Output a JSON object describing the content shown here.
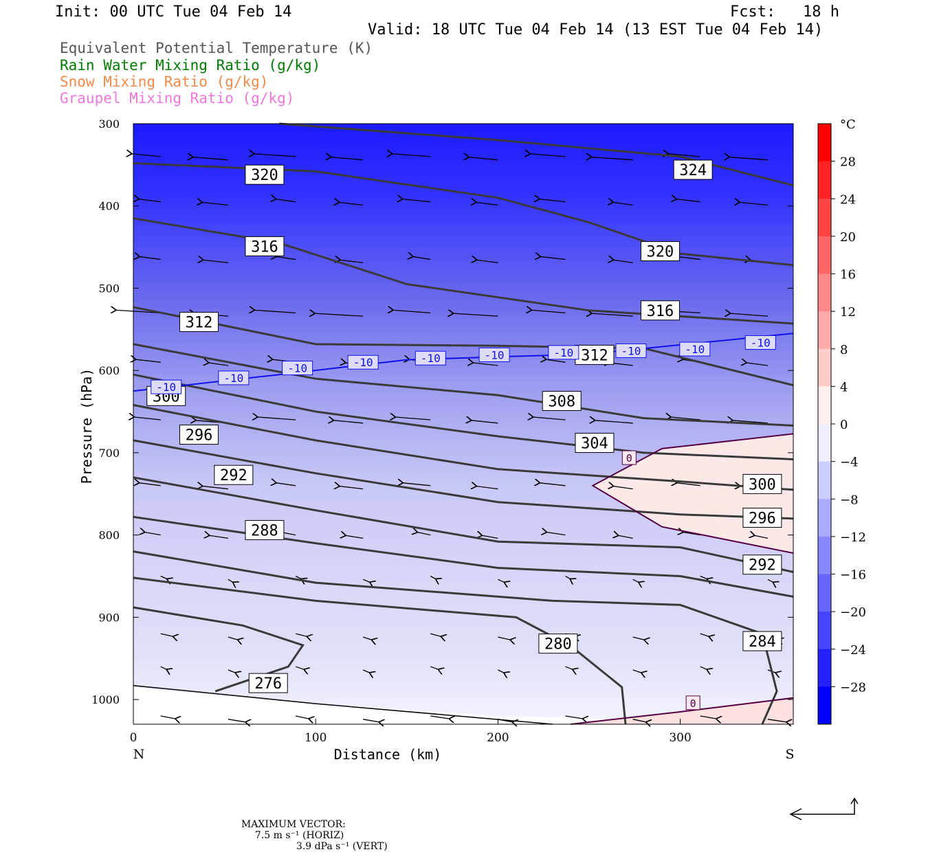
{
  "header": {
    "init": "Init: 00 UTC Tue 04 Feb 14",
    "fcst": "Fcst:   18 h",
    "valid": "Valid: 18 UTC Tue 04 Feb 14 (13 EST Tue 04 Feb 14)"
  },
  "fields": [
    {
      "label": "Equivalent Potential Temperature (K)",
      "color": "#555555"
    },
    {
      "label": "Rain Water Mixing Ratio (g/kg)",
      "color": "#007a00"
    },
    {
      "label": "Snow Mixing Ratio (g/kg)",
      "color": "#f08a4a"
    },
    {
      "label": "Graupel Mixing Ratio (g/kg)",
      "color": "#ee77dd"
    }
  ],
  "chart_data": {
    "type": "cross-section",
    "xlabel": "Distance (km)",
    "ylabel": "Pressure (hPa)",
    "xlim": [
      0,
      362
    ],
    "ylim": [
      1030,
      300
    ],
    "x_ticks": [
      "0",
      "100",
      "200",
      "300"
    ],
    "y_ticks": [
      "300",
      "400",
      "500",
      "600",
      "700",
      "800",
      "900",
      "1000"
    ],
    "x_end_labels": {
      "left": "N",
      "right": "S"
    },
    "theta_e_contours": [
      {
        "label": "324",
        "points": [
          [
            80,
            300
          ],
          [
            200,
            320
          ],
          [
            300,
            340
          ],
          [
            362,
            375
          ]
        ],
        "label_at": [
          307,
          356
        ]
      },
      {
        "label": "320",
        "points": [
          [
            0,
            348
          ],
          [
            100,
            358
          ],
          [
            200,
            390
          ],
          [
            250,
            420
          ],
          [
            300,
            458
          ],
          [
            362,
            472
          ]
        ],
        "label_at": [
          72,
          362
        ]
      },
      {
        "label": "320",
        "points": [],
        "label_at": [
          289,
          455
        ]
      },
      {
        "label": "316",
        "points": [
          [
            0,
            415
          ],
          [
            80,
            445
          ],
          [
            150,
            495
          ],
          [
            250,
            527
          ],
          [
            362,
            543
          ]
        ],
        "label_at": [
          72,
          449
        ]
      },
      {
        "label": "316",
        "points": [],
        "label_at": [
          289,
          527
        ]
      },
      {
        "label": "312",
        "points": [
          [
            0,
            523
          ],
          [
            100,
            568
          ],
          [
            200,
            570
          ],
          [
            280,
            573
          ],
          [
            362,
            618
          ]
        ],
        "label_at": [
          36,
          541
        ]
      },
      {
        "label": "312",
        "points": [],
        "label_at": [
          253,
          581
        ]
      },
      {
        "label": "308",
        "points": [
          [
            0,
            568
          ],
          [
            100,
            610
          ],
          [
            200,
            630
          ],
          [
            280,
            658
          ],
          [
            362,
            667
          ]
        ],
        "label_at": [
          235,
          637
        ]
      },
      {
        "label": "304",
        "points": [
          [
            0,
            605
          ],
          [
            100,
            650
          ],
          [
            200,
            680
          ],
          [
            280,
            700
          ],
          [
            362,
            708
          ]
        ],
        "label_at": [
          253,
          688
        ]
      },
      {
        "label": "300",
        "points": [
          [
            0,
            642
          ],
          [
            100,
            685
          ],
          [
            200,
            720
          ],
          [
            300,
            735
          ],
          [
            362,
            745
          ]
        ],
        "label_at": [
          18,
          631
        ]
      },
      {
        "label": "300",
        "points": [],
        "label_at": [
          345,
          738
        ]
      },
      {
        "label": "296",
        "points": [
          [
            0,
            685
          ],
          [
            100,
            725
          ],
          [
            200,
            760
          ],
          [
            300,
            775
          ],
          [
            362,
            780
          ]
        ],
        "label_at": [
          36,
          678
        ]
      },
      {
        "label": "296",
        "points": [],
        "label_at": [
          345,
          779
        ]
      },
      {
        "label": "292",
        "points": [
          [
            0,
            730
          ],
          [
            100,
            770
          ],
          [
            200,
            808
          ],
          [
            300,
            815
          ],
          [
            362,
            845
          ]
        ],
        "label_at": [
          55,
          727
        ]
      },
      {
        "label": "292",
        "points": [],
        "label_at": [
          345,
          836
        ]
      },
      {
        "label": "288",
        "points": [
          [
            0,
            778
          ],
          [
            100,
            810
          ],
          [
            200,
            840
          ],
          [
            300,
            850
          ],
          [
            362,
            875
          ]
        ],
        "label_at": [
          72,
          794
        ]
      },
      {
        "label": "284",
        "points": [
          [
            0,
            820
          ],
          [
            100,
            858
          ],
          [
            230,
            880
          ],
          [
            300,
            885
          ],
          [
            345,
            920
          ],
          [
            353,
            990
          ],
          [
            345,
            1030
          ]
        ],
        "label_at": [
          345,
          929
        ]
      },
      {
        "label": "280",
        "points": [
          [
            0,
            852
          ],
          [
            100,
            880
          ],
          [
            210,
            900
          ],
          [
            240,
            935
          ],
          [
            268,
            985
          ],
          [
            270,
            1030
          ]
        ],
        "label_at": [
          233,
          932
        ]
      },
      {
        "label": "276",
        "points": [
          [
            0,
            888
          ],
          [
            60,
            910
          ],
          [
            93,
            934
          ],
          [
            85,
            960
          ],
          [
            45,
            990
          ]
        ],
        "label_at": [
          74,
          980
        ]
      }
    ],
    "isotherm_minus10": {
      "label": "-10",
      "points": [
        [
          0,
          625
        ],
        [
          80,
          605
        ],
        [
          150,
          587
        ],
        [
          250,
          580
        ],
        [
          362,
          555
        ]
      ],
      "label_at": [
        [
          18,
          620
        ],
        [
          55,
          609
        ],
        [
          90,
          597
        ],
        [
          126,
          590
        ],
        [
          163,
          585
        ],
        [
          198,
          581
        ],
        [
          236,
          578
        ],
        [
          273,
          576
        ],
        [
          308,
          574
        ],
        [
          344,
          566
        ]
      ]
    },
    "isotherm_0": {
      "label": "0",
      "points": [
        [
          362,
          677
        ],
        [
          290,
          695
        ],
        [
          252,
          740
        ],
        [
          290,
          790
        ],
        [
          362,
          822
        ]
      ],
      "label_at": [
        [
          272,
          706
        ],
        [
          307,
          1004
        ]
      ]
    },
    "isotherm_0_bottom": {
      "points": [
        [
          240,
          1030
        ],
        [
          300,
          1015
        ],
        [
          362,
          998
        ]
      ]
    },
    "colorbar": {
      "unit": "°C",
      "ticks": [
        "28",
        "24",
        "20",
        "16",
        "12",
        "8",
        "4",
        "0",
        "−4",
        "−8",
        "−12",
        "−16",
        "−20",
        "−24",
        "−28"
      ],
      "range": [
        -32,
        32
      ]
    }
  },
  "footer": {
    "prefix": "MAXIMUM VECTOR:",
    "horiz": "7.5 m s⁻¹ (HORIZ)",
    "vert": "3.9 dPa s⁻¹ (VERT)"
  }
}
